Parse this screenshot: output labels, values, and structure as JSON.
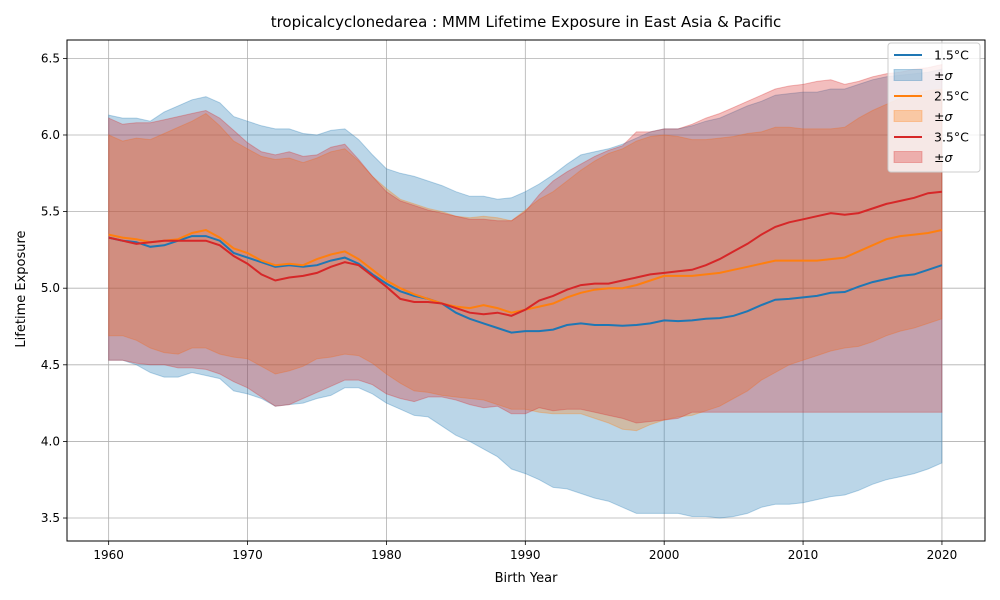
{
  "chart_data": {
    "type": "area",
    "title": "tropicalcyclonedarea : MMM Lifetime Exposure in East Asia & Pacific",
    "xlabel": "Birth Year",
    "ylabel": "Lifetime Exposure",
    "xlim": [
      1957,
      2023.1
    ],
    "ylim": [
      3.35,
      6.62
    ],
    "xticks": [
      1960,
      1970,
      1980,
      1990,
      2000,
      2010,
      2020
    ],
    "yticks": [
      3.5,
      4.0,
      4.5,
      5.0,
      5.5,
      6.0,
      6.5
    ],
    "xtick_labels": [
      "1960",
      "1970",
      "1980",
      "1990",
      "2000",
      "2010",
      "2020"
    ],
    "ytick_labels": [
      "3.5",
      "4.0",
      "4.5",
      "5.0",
      "5.5",
      "6.0",
      "6.5"
    ],
    "grid": true,
    "legend_position": "top-right",
    "x": [
      1960,
      1961,
      1962,
      1963,
      1964,
      1965,
      1966,
      1967,
      1968,
      1969,
      1970,
      1971,
      1972,
      1973,
      1974,
      1975,
      1976,
      1977,
      1978,
      1979,
      1980,
      1981,
      1982,
      1983,
      1984,
      1985,
      1986,
      1987,
      1988,
      1989,
      1990,
      1991,
      1992,
      1993,
      1994,
      1995,
      1996,
      1997,
      1998,
      1999,
      2000,
      2001,
      2002,
      2003,
      2004,
      2005,
      2006,
      2007,
      2008,
      2009,
      2010,
      2011,
      2012,
      2013,
      2014,
      2015,
      2016,
      2017,
      2018,
      2019,
      2020
    ],
    "series": [
      {
        "name": "1.5°C",
        "band_name": "±σ",
        "color": "#1f77b4",
        "mean": [
          5.33,
          5.31,
          5.3,
          5.27,
          5.28,
          5.31,
          5.34,
          5.34,
          5.31,
          5.23,
          5.2,
          5.17,
          5.14,
          5.15,
          5.14,
          5.15,
          5.18,
          5.2,
          5.16,
          5.09,
          5.03,
          4.98,
          4.95,
          4.93,
          4.9,
          4.84,
          4.8,
          4.77,
          4.74,
          4.71,
          4.72,
          4.72,
          4.73,
          4.76,
          4.77,
          4.76,
          4.76,
          4.755,
          4.76,
          4.77,
          4.79,
          4.785,
          4.79,
          4.8,
          4.805,
          4.82,
          4.85,
          4.89,
          4.925,
          4.93,
          4.94,
          4.95,
          4.97,
          4.975,
          5.01,
          5.04,
          5.06,
          5.08,
          5.09,
          5.12,
          5.15
        ],
        "upper": [
          6.13,
          6.11,
          6.11,
          6.09,
          6.15,
          6.19,
          6.23,
          6.25,
          6.21,
          6.12,
          6.09,
          6.06,
          6.04,
          6.04,
          6.01,
          6.0,
          6.03,
          6.04,
          5.97,
          5.87,
          5.78,
          5.75,
          5.73,
          5.7,
          5.67,
          5.63,
          5.6,
          5.6,
          5.58,
          5.59,
          5.63,
          5.68,
          5.74,
          5.81,
          5.87,
          5.89,
          5.91,
          5.94,
          5.98,
          6.02,
          6.04,
          6.04,
          6.06,
          6.09,
          6.11,
          6.15,
          6.19,
          6.22,
          6.26,
          6.27,
          6.28,
          6.28,
          6.3,
          6.3,
          6.33,
          6.36,
          6.38,
          6.39,
          6.4,
          6.41,
          6.43
        ],
        "lower": [
          4.53,
          4.53,
          4.5,
          4.45,
          4.42,
          4.42,
          4.45,
          4.43,
          4.41,
          4.33,
          4.31,
          4.28,
          4.23,
          4.24,
          4.25,
          4.28,
          4.3,
          4.35,
          4.35,
          4.31,
          4.25,
          4.21,
          4.17,
          4.16,
          4.1,
          4.04,
          4.0,
          3.95,
          3.9,
          3.82,
          3.79,
          3.75,
          3.7,
          3.69,
          3.66,
          3.63,
          3.61,
          3.57,
          3.53,
          3.53,
          3.53,
          3.53,
          3.51,
          3.51,
          3.5,
          3.51,
          3.53,
          3.57,
          3.59,
          3.59,
          3.6,
          3.62,
          3.64,
          3.65,
          3.68,
          3.72,
          3.75,
          3.77,
          3.79,
          3.82,
          3.86
        ]
      },
      {
        "name": "2.5°C",
        "band_name": "±σ",
        "color": "#ff7f0e",
        "mean": [
          5.35,
          5.33,
          5.32,
          5.3,
          5.31,
          5.32,
          5.36,
          5.38,
          5.33,
          5.26,
          5.23,
          5.18,
          5.15,
          5.16,
          5.15,
          5.19,
          5.22,
          5.24,
          5.19,
          5.12,
          5.05,
          5.0,
          4.96,
          4.93,
          4.9,
          4.88,
          4.87,
          4.89,
          4.87,
          4.84,
          4.86,
          4.88,
          4.9,
          4.94,
          4.97,
          4.99,
          5.0,
          5.0,
          5.02,
          5.05,
          5.08,
          5.08,
          5.08,
          5.09,
          5.1,
          5.12,
          5.14,
          5.16,
          5.18,
          5.18,
          5.18,
          5.18,
          5.19,
          5.2,
          5.24,
          5.28,
          5.32,
          5.34,
          5.35,
          5.36,
          5.38
        ],
        "upper": [
          6.0,
          5.96,
          5.98,
          5.97,
          6.01,
          6.05,
          6.09,
          6.14,
          6.06,
          5.96,
          5.91,
          5.86,
          5.84,
          5.85,
          5.82,
          5.85,
          5.89,
          5.91,
          5.83,
          5.73,
          5.65,
          5.58,
          5.55,
          5.52,
          5.5,
          5.47,
          5.46,
          5.47,
          5.46,
          5.44,
          5.51,
          5.58,
          5.63,
          5.7,
          5.77,
          5.83,
          5.88,
          5.91,
          5.96,
          5.99,
          6.0,
          5.99,
          5.97,
          5.97,
          5.98,
          5.99,
          6.01,
          6.02,
          6.05,
          6.05,
          6.04,
          6.04,
          6.04,
          6.05,
          6.11,
          6.16,
          6.2,
          6.24,
          6.27,
          6.29,
          6.3
        ],
        "lower": [
          4.69,
          4.69,
          4.66,
          4.61,
          4.58,
          4.57,
          4.61,
          4.61,
          4.57,
          4.55,
          4.54,
          4.49,
          4.44,
          4.46,
          4.49,
          4.54,
          4.55,
          4.57,
          4.56,
          4.51,
          4.44,
          4.38,
          4.33,
          4.32,
          4.3,
          4.29,
          4.28,
          4.27,
          4.24,
          4.21,
          4.21,
          4.19,
          4.18,
          4.18,
          4.18,
          4.15,
          4.12,
          4.08,
          4.07,
          4.11,
          4.14,
          4.16,
          4.17,
          4.2,
          4.23,
          4.28,
          4.33,
          4.4,
          4.45,
          4.5,
          4.53,
          4.56,
          4.59,
          4.61,
          4.62,
          4.65,
          4.69,
          4.72,
          4.74,
          4.77,
          4.8
        ]
      },
      {
        "name": "3.5°C",
        "band_name": "±σ",
        "color": "#d62728",
        "mean": [
          5.33,
          5.31,
          5.29,
          5.3,
          5.31,
          5.31,
          5.31,
          5.31,
          5.28,
          5.21,
          5.16,
          5.09,
          5.05,
          5.07,
          5.08,
          5.1,
          5.14,
          5.17,
          5.15,
          5.08,
          5.01,
          4.93,
          4.91,
          4.91,
          4.9,
          4.87,
          4.84,
          4.83,
          4.84,
          4.82,
          4.86,
          4.92,
          4.95,
          4.99,
          5.02,
          5.03,
          5.03,
          5.05,
          5.07,
          5.09,
          5.1,
          5.11,
          5.12,
          5.15,
          5.19,
          5.24,
          5.29,
          5.35,
          5.4,
          5.43,
          5.45,
          5.47,
          5.49,
          5.48,
          5.49,
          5.52,
          5.55,
          5.57,
          5.59,
          5.62,
          5.63
        ],
        "upper": [
          6.11,
          6.07,
          6.08,
          6.08,
          6.1,
          6.12,
          6.14,
          6.16,
          6.11,
          6.03,
          5.95,
          5.89,
          5.87,
          5.89,
          5.86,
          5.87,
          5.92,
          5.94,
          5.84,
          5.73,
          5.63,
          5.57,
          5.54,
          5.51,
          5.49,
          5.47,
          5.45,
          5.45,
          5.44,
          5.44,
          5.5,
          5.61,
          5.7,
          5.76,
          5.81,
          5.86,
          5.9,
          5.93,
          6.02,
          6.02,
          6.04,
          6.04,
          6.07,
          6.11,
          6.14,
          6.18,
          6.22,
          6.26,
          6.3,
          6.32,
          6.33,
          6.35,
          6.36,
          6.33,
          6.35,
          6.38,
          6.4,
          6.41,
          6.43,
          6.44,
          6.46
        ],
        "lower": [
          4.53,
          4.53,
          4.51,
          4.5,
          4.5,
          4.48,
          4.48,
          4.47,
          4.44,
          4.39,
          4.35,
          4.29,
          4.23,
          4.24,
          4.28,
          4.32,
          4.36,
          4.4,
          4.4,
          4.37,
          4.31,
          4.28,
          4.26,
          4.29,
          4.29,
          4.27,
          4.24,
          4.22,
          4.23,
          4.18,
          4.18,
          4.22,
          4.2,
          4.21,
          4.21,
          4.19,
          4.17,
          4.15,
          4.12,
          4.13,
          4.14,
          4.15,
          4.19,
          4.19,
          4.19,
          4.19,
          4.19,
          4.19,
          4.19,
          4.19,
          4.19,
          4.19,
          4.19,
          4.19,
          4.19,
          4.19,
          4.19,
          4.19,
          4.19,
          4.19,
          4.19
        ]
      }
    ]
  }
}
